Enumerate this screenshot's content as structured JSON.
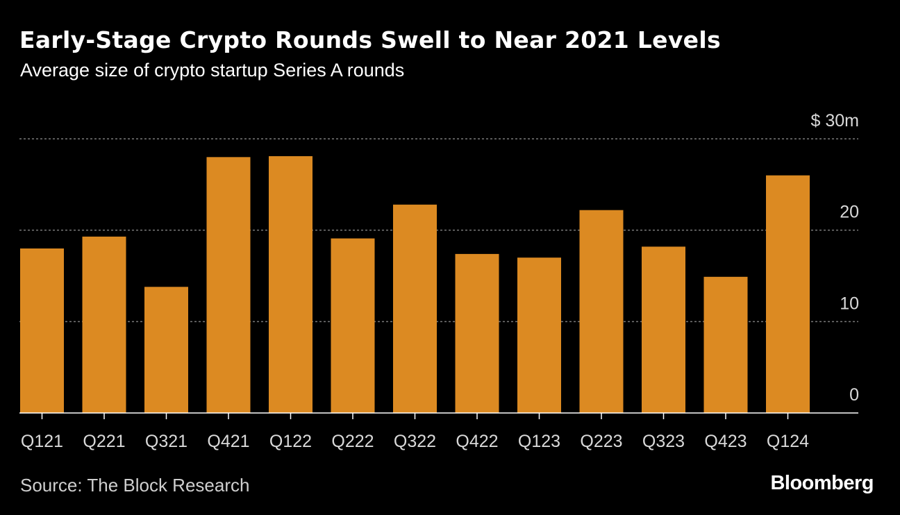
{
  "title": "Early-Stage Crypto Rounds Swell to Near 2021 Levels",
  "subtitle": "Average size of crypto startup Series A rounds",
  "source": "Source: The Block Research",
  "logo": "Bloomberg",
  "colors": {
    "bar": "#dc8a22",
    "background": "#000000",
    "gridline": "#7a7a7a",
    "axis": "#ffffff",
    "tick_label": "#d9d9d9"
  },
  "chart_data": {
    "type": "bar",
    "title": "Early-Stage Crypto Rounds Swell to Near 2021 Levels",
    "subtitle": "Average size of crypto startup Series A rounds",
    "categories": [
      "Q121",
      "Q221",
      "Q321",
      "Q421",
      "Q122",
      "Q222",
      "Q322",
      "Q422",
      "Q123",
      "Q223",
      "Q323",
      "Q423",
      "Q124"
    ],
    "values": [
      18.0,
      19.3,
      13.8,
      28.0,
      28.1,
      19.1,
      22.8,
      17.4,
      17.0,
      22.2,
      18.2,
      14.9,
      26.0
    ],
    "ylim": [
      0,
      30
    ],
    "yticks": [
      0,
      10,
      20,
      30
    ],
    "ytick_labels": [
      "0",
      "10",
      "20",
      "$ 30m"
    ],
    "y_axis_side": "right",
    "grid": true,
    "legend": false
  }
}
